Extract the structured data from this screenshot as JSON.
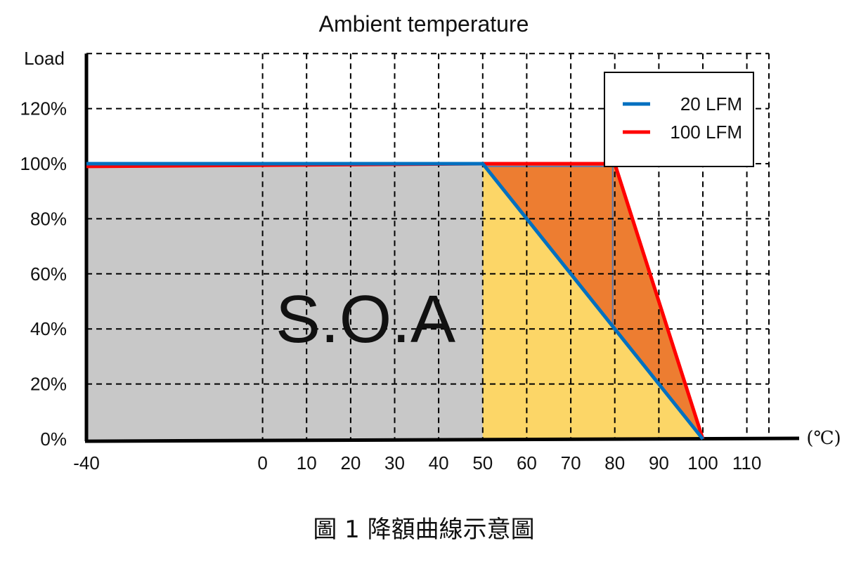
{
  "chart_data": {
    "type": "line",
    "title": "Ambient temperature",
    "ylabel": "Load",
    "xunit": "(℃)",
    "caption": "圖 1 降額曲線示意圖",
    "annotation": "S.O.A",
    "xlim": [
      -40,
      115
    ],
    "ylim": [
      0,
      140
    ],
    "grid": true,
    "legend_position": "top-right",
    "x_ticks": [
      "-40",
      "0",
      "10",
      "20",
      "30",
      "40",
      "50",
      "60",
      "70",
      "80",
      "90",
      "100",
      "110"
    ],
    "y_ticks": [
      "0%",
      "20%",
      "40%",
      "60%",
      "80%",
      "100%",
      "120%"
    ],
    "series": [
      {
        "name": "20 LFM",
        "color": "#0070C0",
        "x": [
          -40,
          50,
          100
        ],
        "y": [
          100,
          100,
          0
        ]
      },
      {
        "name": "100 LFM",
        "color": "#FF0000",
        "x": [
          -40,
          50,
          80,
          100
        ],
        "y": [
          99,
          100,
          100,
          0
        ]
      }
    ],
    "regions": [
      {
        "color": "#C8C8C8",
        "x": [
          -40,
          50,
          50,
          -40
        ],
        "y": [
          100,
          100,
          0,
          0
        ]
      },
      {
        "color": "#FCD667",
        "x": [
          50,
          100,
          50
        ],
        "y": [
          100,
          0,
          0
        ]
      },
      {
        "color": "#ED7D31",
        "x": [
          50,
          80,
          80
        ],
        "y": [
          100,
          100,
          40
        ]
      },
      {
        "color": "#ED7D31",
        "x": [
          80,
          100,
          80
        ],
        "y": [
          100,
          0,
          40
        ]
      }
    ]
  }
}
